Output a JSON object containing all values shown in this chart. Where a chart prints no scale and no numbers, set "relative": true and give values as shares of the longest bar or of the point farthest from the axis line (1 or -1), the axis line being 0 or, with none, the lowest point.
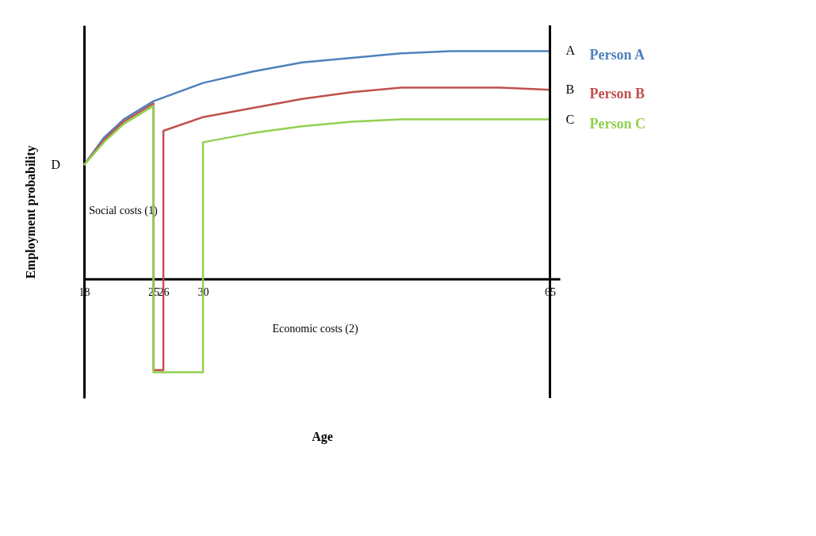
{
  "chart_data": {
    "type": "line",
    "relative": true,
    "xlabel": "Age",
    "ylabel": "Employment probability",
    "xlim": [
      18,
      66
    ],
    "xticks": [
      18,
      25,
      26,
      30,
      65
    ],
    "legend": false,
    "grid": false,
    "marker": "none",
    "line_style": "solid",
    "series": [
      {
        "name": "Person A",
        "color": "#4f81bd",
        "x": [
          18,
          20,
          22,
          25,
          30,
          35,
          40,
          45,
          50,
          55,
          60,
          65
        ],
        "values": [
          0.5,
          0.62,
          0.7,
          0.78,
          0.86,
          0.91,
          0.95,
          0.97,
          0.99,
          1.0,
          1.0,
          1.0
        ]
      },
      {
        "name": "Person B",
        "color": "#c0504d",
        "x": [
          18,
          20,
          22,
          25,
          25,
          26,
          26,
          30,
          35,
          40,
          45,
          50,
          55,
          60,
          65
        ],
        "values": [
          0.5,
          0.61,
          0.69,
          0.77,
          -0.4,
          -0.4,
          0.65,
          0.71,
          0.75,
          0.79,
          0.82,
          0.84,
          0.84,
          0.84,
          0.83
        ]
      },
      {
        "name": "Person C",
        "color": "#92d050",
        "x": [
          18,
          20,
          22,
          25,
          25,
          30,
          30,
          35,
          40,
          45,
          50,
          55,
          60,
          65
        ],
        "values": [
          0.5,
          0.6,
          0.68,
          0.76,
          -0.41,
          -0.41,
          0.6,
          0.64,
          0.67,
          0.69,
          0.7,
          0.7,
          0.7,
          0.7
        ]
      }
    ],
    "ref_lines": [
      {
        "axis": "x",
        "value": 65,
        "color": "#000000"
      }
    ],
    "annotations": [
      "A",
      "B",
      "C",
      "D",
      "Social costs (1)",
      "Economic costs (2)"
    ]
  }
}
